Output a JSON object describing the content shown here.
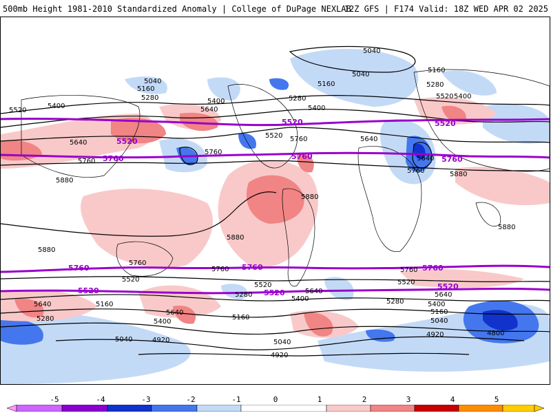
{
  "header": {
    "title_left": "500mb Height 1981-2010 Standardized Anomaly | College of DuPage NEXLAB",
    "title_right": "12Z GFS | F174 Valid: 18Z WED APR 02 2025"
  },
  "colors": {
    "neg5": "#cc66ff",
    "neg4": "#8800cc",
    "neg3": "#1133cc",
    "neg2": "#4477ee",
    "neg1": "#c3daf7",
    "zero": "#ffffff",
    "pos1": "#f9c9c9",
    "pos2": "#f18484",
    "pos3": "#e83b3b",
    "pos4": "#b30000",
    "pos5": "#ff8c00",
    "contour_special": "#9900cc"
  },
  "legend": {
    "ticks": [
      "-5",
      "-4",
      "-3",
      "-2",
      "-1",
      "0",
      "1",
      "2",
      "3",
      "4",
      "5"
    ]
  },
  "contours": {
    "c5040": "5040",
    "c5160": "5160",
    "c5280": "5280",
    "c5400": "5400",
    "c5520": "5520",
    "c5640": "5640",
    "c5760": "5760",
    "c5880": "5880",
    "c4920": "4920",
    "c4800": "4800"
  }
}
